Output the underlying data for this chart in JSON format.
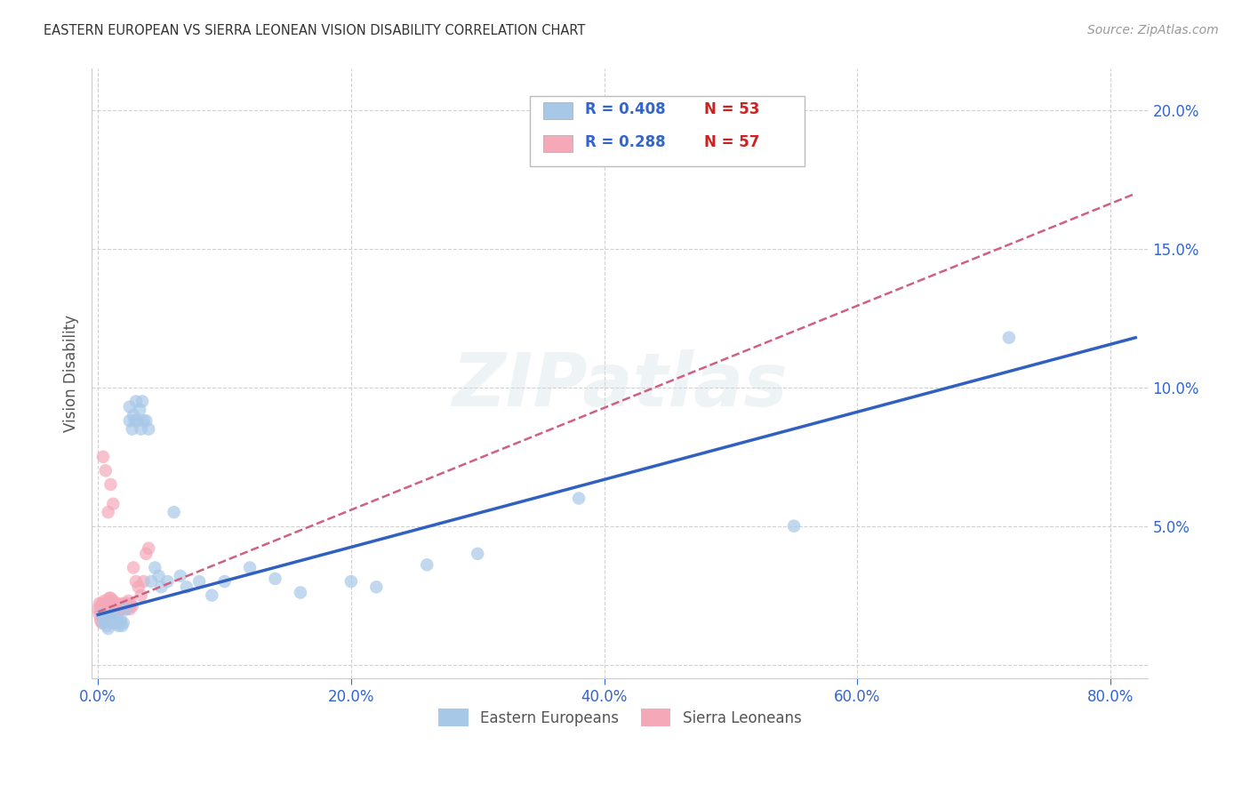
{
  "title": "EASTERN EUROPEAN VS SIERRA LEONEAN VISION DISABILITY CORRELATION CHART",
  "source": "Source: ZipAtlas.com",
  "ylabel": "Vision Disability",
  "xlim": [
    -0.005,
    0.83
  ],
  "ylim": [
    -0.005,
    0.215
  ],
  "xticks": [
    0.0,
    0.2,
    0.4,
    0.6,
    0.8
  ],
  "xtick_labels": [
    "0.0%",
    "20.0%",
    "40.0%",
    "60.0%",
    "80.0%"
  ],
  "yticks": [
    0.0,
    0.05,
    0.1,
    0.15,
    0.2
  ],
  "ytick_labels": [
    "",
    "5.0%",
    "10.0%",
    "15.0%",
    "20.0%"
  ],
  "blue_R": 0.408,
  "blue_N": 53,
  "pink_R": 0.288,
  "pink_N": 57,
  "blue_color": "#a8c8e8",
  "pink_color": "#f4a8b8",
  "blue_line_color": "#3060c0",
  "pink_line_color": "#d06080",
  "grid_color": "#cccccc",
  "watermark": "ZIPatlas",
  "legend_label_blue": "Eastern Europeans",
  "legend_label_pink": "Sierra Leoneans",
  "blue_x": [
    0.003,
    0.004,
    0.005,
    0.006,
    0.007,
    0.008,
    0.009,
    0.01,
    0.011,
    0.012,
    0.013,
    0.014,
    0.015,
    0.016,
    0.017,
    0.018,
    0.019,
    0.02,
    0.022,
    0.025,
    0.025,
    0.027,
    0.028,
    0.029,
    0.03,
    0.031,
    0.033,
    0.034,
    0.035,
    0.036,
    0.038,
    0.04,
    0.042,
    0.045,
    0.048,
    0.05,
    0.055,
    0.06,
    0.065,
    0.07,
    0.08,
    0.09,
    0.1,
    0.12,
    0.14,
    0.16,
    0.2,
    0.22,
    0.26,
    0.3,
    0.38,
    0.55,
    0.72
  ],
  "blue_y": [
    0.018,
    0.015,
    0.017,
    0.016,
    0.014,
    0.013,
    0.016,
    0.015,
    0.018,
    0.016,
    0.017,
    0.015,
    0.016,
    0.014,
    0.015,
    0.016,
    0.014,
    0.015,
    0.02,
    0.088,
    0.093,
    0.085,
    0.09,
    0.088,
    0.095,
    0.088,
    0.092,
    0.085,
    0.095,
    0.088,
    0.088,
    0.085,
    0.03,
    0.035,
    0.032,
    0.028,
    0.03,
    0.055,
    0.032,
    0.028,
    0.03,
    0.025,
    0.03,
    0.035,
    0.031,
    0.026,
    0.03,
    0.028,
    0.036,
    0.04,
    0.06,
    0.05,
    0.118
  ],
  "pink_x": [
    0.0,
    0.001,
    0.001,
    0.002,
    0.002,
    0.003,
    0.003,
    0.003,
    0.004,
    0.004,
    0.005,
    0.005,
    0.006,
    0.006,
    0.007,
    0.007,
    0.008,
    0.008,
    0.009,
    0.009,
    0.01,
    0.01,
    0.011,
    0.011,
    0.012,
    0.012,
    0.013,
    0.013,
    0.014,
    0.014,
    0.015,
    0.015,
    0.016,
    0.016,
    0.017,
    0.018,
    0.019,
    0.02,
    0.021,
    0.022,
    0.023,
    0.024,
    0.025,
    0.026,
    0.027,
    0.028,
    0.03,
    0.032,
    0.034,
    0.036,
    0.038,
    0.04,
    0.012,
    0.01,
    0.008,
    0.006,
    0.004
  ],
  "pink_y": [
    0.02,
    0.018,
    0.022,
    0.016,
    0.02,
    0.018,
    0.022,
    0.015,
    0.018,
    0.022,
    0.02,
    0.023,
    0.018,
    0.022,
    0.019,
    0.021,
    0.018,
    0.022,
    0.02,
    0.024,
    0.022,
    0.024,
    0.02,
    0.023,
    0.02,
    0.023,
    0.02,
    0.022,
    0.019,
    0.022,
    0.02,
    0.022,
    0.019,
    0.021,
    0.02,
    0.021,
    0.022,
    0.021,
    0.022,
    0.02,
    0.022,
    0.023,
    0.02,
    0.022,
    0.021,
    0.035,
    0.03,
    0.028,
    0.025,
    0.03,
    0.04,
    0.042,
    0.058,
    0.065,
    0.055,
    0.07,
    0.075
  ],
  "blue_trendline_x": [
    0.0,
    0.82
  ],
  "blue_trendline_y": [
    0.018,
    0.118
  ],
  "pink_trendline_x": [
    0.0,
    0.82
  ],
  "pink_trendline_y": [
    0.019,
    0.17
  ]
}
